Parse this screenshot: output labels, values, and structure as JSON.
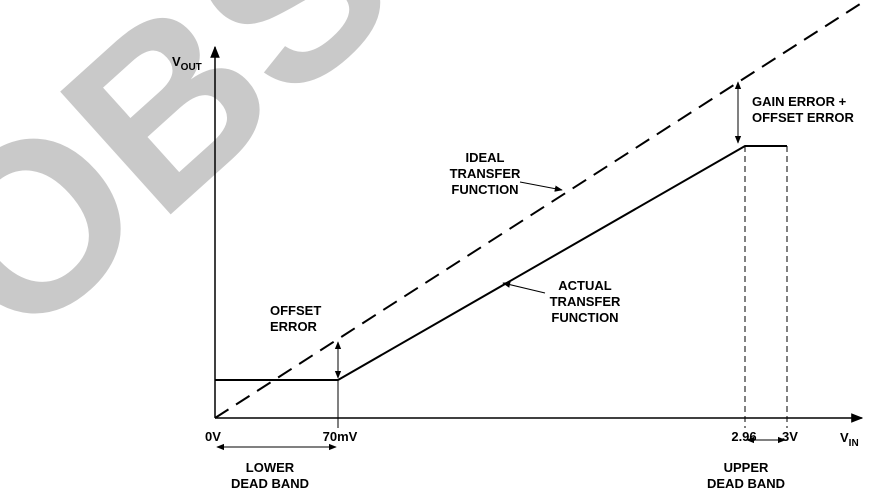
{
  "watermark": "OBS",
  "axes": {
    "y_label": {
      "main": "V",
      "sub": "OUT"
    },
    "x_label": {
      "main": "V",
      "sub": "IN"
    }
  },
  "x_ticks": [
    "0V",
    "70mV",
    "2.96",
    "3V"
  ],
  "annotations": {
    "lower_dead_band": [
      "LOWER",
      "DEAD BAND"
    ],
    "upper_dead_band": [
      "UPPER",
      "DEAD BAND"
    ],
    "offset_error": [
      "OFFSET",
      "ERROR"
    ],
    "ideal": [
      "IDEAL",
      "TRANSFER",
      "FUNCTION"
    ],
    "actual": [
      "ACTUAL",
      "TRANSFER",
      "FUNCTION"
    ],
    "gain_error": [
      "GAIN ERROR +",
      "OFFSET ERROR"
    ]
  }
}
